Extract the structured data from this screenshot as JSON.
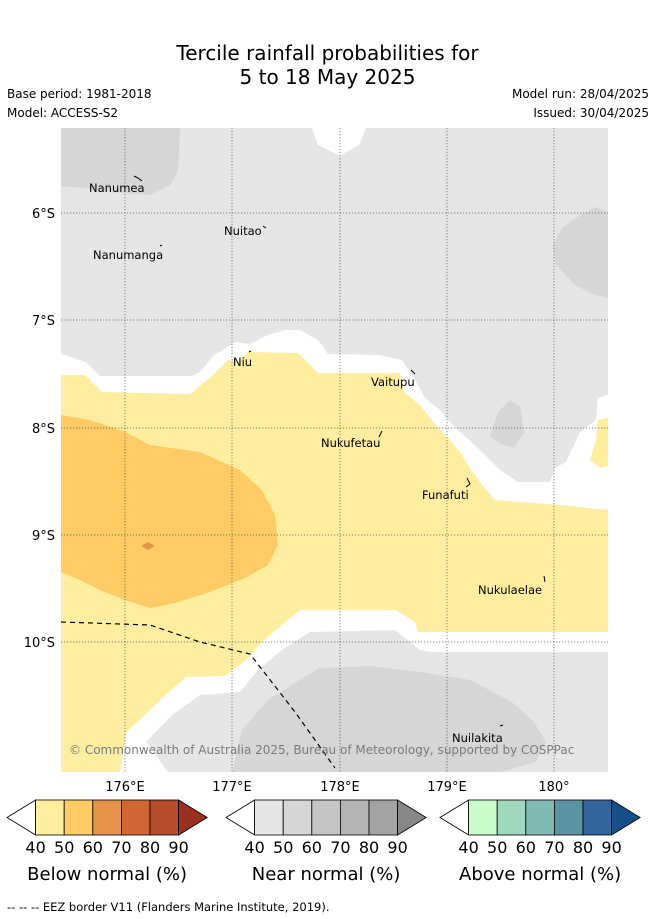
{
  "header": {
    "title_line1": "Tercile rainfall probabilities for",
    "title_line2": "5 to 18 May 2025",
    "base_period": "Base period: 1981-2018",
    "model": "Model: ACCESS-S2",
    "model_run": "Model run: 28/04/2025",
    "issued": "Issued: 30/04/2025"
  },
  "map": {
    "lat_labels": [
      "6°S",
      "7°S",
      "8°S",
      "9°S",
      "10°S"
    ],
    "lon_labels": [
      "176°E",
      "177°E",
      "178°E",
      "179°E",
      "180°"
    ],
    "places": [
      "Nanumea",
      "Nuitao",
      "Nanumanga",
      "Niu",
      "Vaitupu",
      "Nukufetau",
      "Funafuti",
      "Nukulaelae",
      "Nuilakita"
    ],
    "copyright": "© Commonwealth of Australia 2025, Bureau of Meteorology, supported by COSPPac",
    "eez_style": "dashed black line"
  },
  "legends": [
    {
      "title": "Below normal (%)",
      "ticks": [
        "40",
        "50",
        "60",
        "70",
        "80",
        "90"
      ],
      "colors": [
        "#ffffff",
        "#ffeda0",
        "#fecb64",
        "#e3944a",
        "#d06634",
        "#b54c2a",
        "#9c2f1f"
      ]
    },
    {
      "title": "Near normal (%)",
      "ticks": [
        "40",
        "50",
        "60",
        "70",
        "80",
        "90"
      ],
      "colors": [
        "#ffffff",
        "#e6e6e6",
        "#d6d6d6",
        "#c5c5c5",
        "#b4b4b4",
        "#a3a3a3",
        "#888888"
      ]
    },
    {
      "title": "Above normal (%)",
      "ticks": [
        "40",
        "50",
        "60",
        "70",
        "80",
        "90"
      ],
      "colors": [
        "#ffffff",
        "#c9fbcb",
        "#a0d8be",
        "#83b9b4",
        "#5b93a2",
        "#33659c",
        "#154f8a"
      ]
    }
  ],
  "footer": "--  --  -- EEZ border V11 (Flanders Marine Institute, 2019)."
}
